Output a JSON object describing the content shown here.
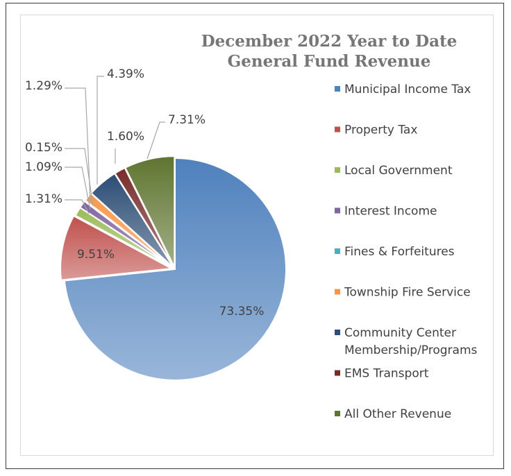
{
  "chart_data": {
    "type": "pie",
    "title_lines": [
      "December 2022 Year to Date",
      "General Fund Revenue"
    ],
    "slices": [
      {
        "label": "Municipal Income Tax",
        "value": 73.35,
        "data_label": "73.35%",
        "color": "#4F81BD"
      },
      {
        "label": "Property Tax",
        "value": 9.51,
        "data_label": "9.51%",
        "color": "#C0504D"
      },
      {
        "label": "Local Government",
        "value": 1.31,
        "data_label": "1.31%",
        "color": "#9BBB59"
      },
      {
        "label": "Interest Income",
        "value": 1.09,
        "data_label": "1.09%",
        "color": "#8064A2"
      },
      {
        "label": "Fines & Forfeitures",
        "value": 0.15,
        "data_label": "0.15%",
        "color": "#4BACC6"
      },
      {
        "label": "Township Fire Service",
        "value": 1.29,
        "data_label": "1.29%",
        "color": "#F79646"
      },
      {
        "label": "Community Center Membership/Programs",
        "legend_lines": [
          "Community Center",
          "Membership/Programs"
        ],
        "value": 4.39,
        "data_label": "4.39%",
        "color": "#2C4D75"
      },
      {
        "label": "EMS Transport",
        "value": 1.6,
        "data_label": "1.60%",
        "color": "#772C2A"
      },
      {
        "label": "All Other Revenue",
        "value": 7.31,
        "data_label": "7.31%",
        "color": "#5F7530"
      }
    ],
    "legend_position": "right"
  }
}
